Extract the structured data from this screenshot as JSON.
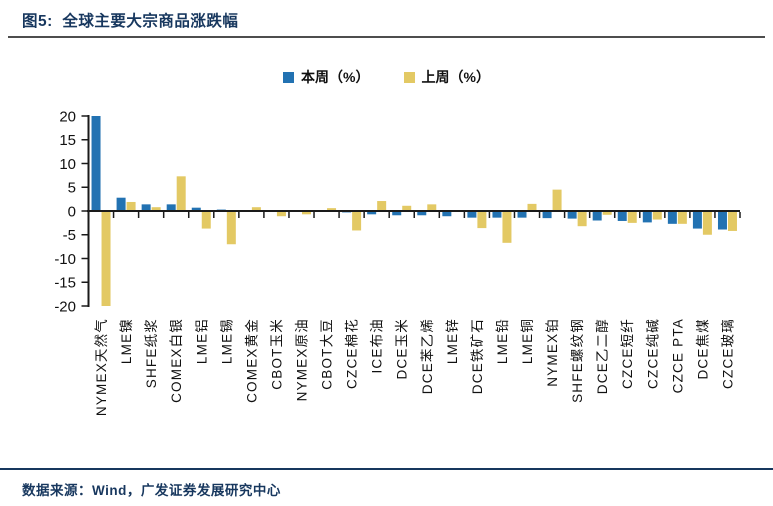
{
  "header": {
    "title": "图5:  全球主要大宗商品涨跌幅"
  },
  "legend": {
    "items": [
      "本周（%）",
      "上周（%）"
    ]
  },
  "footer": {
    "source": "数据来源：Wind，广发证券发展研究中心"
  },
  "chart_data": {
    "type": "bar",
    "title": "全球主要大宗商品涨跌幅",
    "categories": [
      "NYMEX天然气",
      "LME镍",
      "SHFE纸浆",
      "COMEX白银",
      "LME铝",
      "LME锡",
      "COMEX黄金",
      "CBOT玉米",
      "NYMEX原油",
      "CBOT大豆",
      "CZCE棉花",
      "ICE布油",
      "DCE玉米",
      "DCE苯乙烯",
      "LME锌",
      "DCE铁矿石",
      "LME铅",
      "LME铜",
      "NYMEX铂",
      "SHFE螺纹钢",
      "DCE乙二醇",
      "CZCE短纤",
      "CZCE纯碱",
      "CZCE PTA",
      "DCE焦煤",
      "CZCE玻璃"
    ],
    "series": [
      {
        "name": "本周（%）",
        "color": "#2272B2",
        "values": [
          20.0,
          2.8,
          1.4,
          1.4,
          0.7,
          0.3,
          0.2,
          -0.1,
          -0.1,
          -0.2,
          -0.3,
          -0.7,
          -0.9,
          -0.9,
          -1.1,
          -1.4,
          -1.4,
          -1.4,
          -1.5,
          -1.6,
          -2.0,
          -2.1,
          -2.4,
          -2.7,
          -3.7,
          -3.9
        ]
      },
      {
        "name": "上周（%）",
        "color": "#E3C964",
        "values": [
          -20.0,
          1.9,
          0.8,
          7.3,
          -3.7,
          -7.0,
          0.8,
          -1.1,
          -0.7,
          0.6,
          -4.1,
          2.1,
          1.1,
          1.4,
          -0.2,
          -3.6,
          -6.7,
          1.5,
          4.5,
          -3.2,
          -0.8,
          -2.5,
          -1.8,
          -2.7,
          -5.0,
          -4.2
        ]
      }
    ],
    "xlabel": "",
    "ylabel": "",
    "ylim": [
      -20,
      20
    ],
    "ytick_step": 5,
    "grid": false,
    "legend_position": "top"
  }
}
